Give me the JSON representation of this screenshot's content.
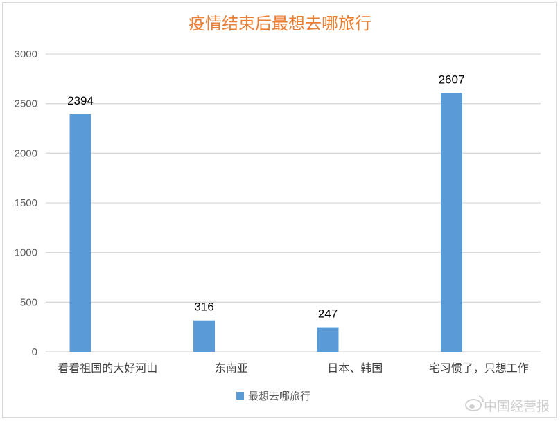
{
  "chart_data": {
    "type": "bar",
    "title": "疫情结束后最想去哪旅行",
    "categories": [
      "看看祖国的大好河山",
      "东南亚",
      "日本、韩国",
      "宅习惯了，只想工作"
    ],
    "series": [
      {
        "name": "最想去哪旅行",
        "values": [
          2394,
          316,
          247,
          2607
        ],
        "color": "#5b9bd5"
      }
    ],
    "ylim": [
      0,
      3000
    ],
    "yticks": [
      0,
      500,
      1000,
      1500,
      2000,
      2500,
      3000
    ],
    "grid": true,
    "legend_position": "bottom",
    "data_labels": true
  },
  "watermark": {
    "text": "中国经营报",
    "icon": "weibo-logo-icon"
  },
  "colors": {
    "title": "#ed7d31",
    "gridline": "#d9d9d9",
    "bar": "#5b9bd5"
  }
}
